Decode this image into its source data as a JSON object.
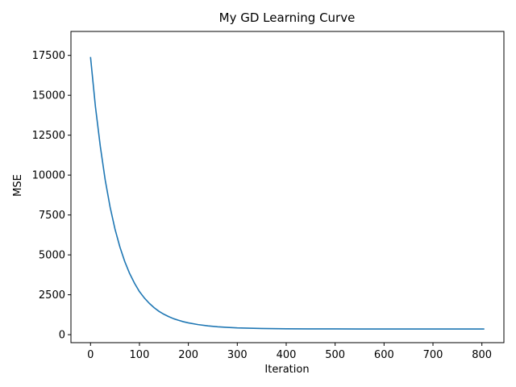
{
  "chart_data": {
    "type": "line",
    "title": "My GD Learning Curve",
    "xlabel": "Iteration",
    "ylabel": "MSE",
    "xlim": [
      -40,
      845
    ],
    "ylim": [
      -500,
      19000
    ],
    "xticks": [
      0,
      100,
      200,
      300,
      400,
      500,
      600,
      700,
      800
    ],
    "yticks": [
      0,
      2500,
      5000,
      7500,
      10000,
      12500,
      15000,
      17500
    ],
    "grid": false,
    "series": [
      {
        "color": "#1f77b4",
        "x": [
          0,
          10,
          20,
          30,
          40,
          50,
          60,
          70,
          80,
          90,
          100,
          110,
          120,
          130,
          140,
          150,
          160,
          170,
          180,
          190,
          200,
          220,
          240,
          260,
          280,
          300,
          350,
          400,
          450,
          500,
          550,
          600,
          650,
          700,
          750,
          805
        ],
        "y": [
          17400,
          14300,
          11800,
          9700,
          8000,
          6620,
          5500,
          4580,
          3830,
          3220,
          2700,
          2300,
          1970,
          1690,
          1460,
          1280,
          1130,
          1000,
          900,
          810,
          740,
          630,
          550,
          495,
          455,
          425,
          385,
          370,
          363,
          360,
          358,
          357,
          356,
          356,
          356,
          356
        ]
      }
    ]
  }
}
